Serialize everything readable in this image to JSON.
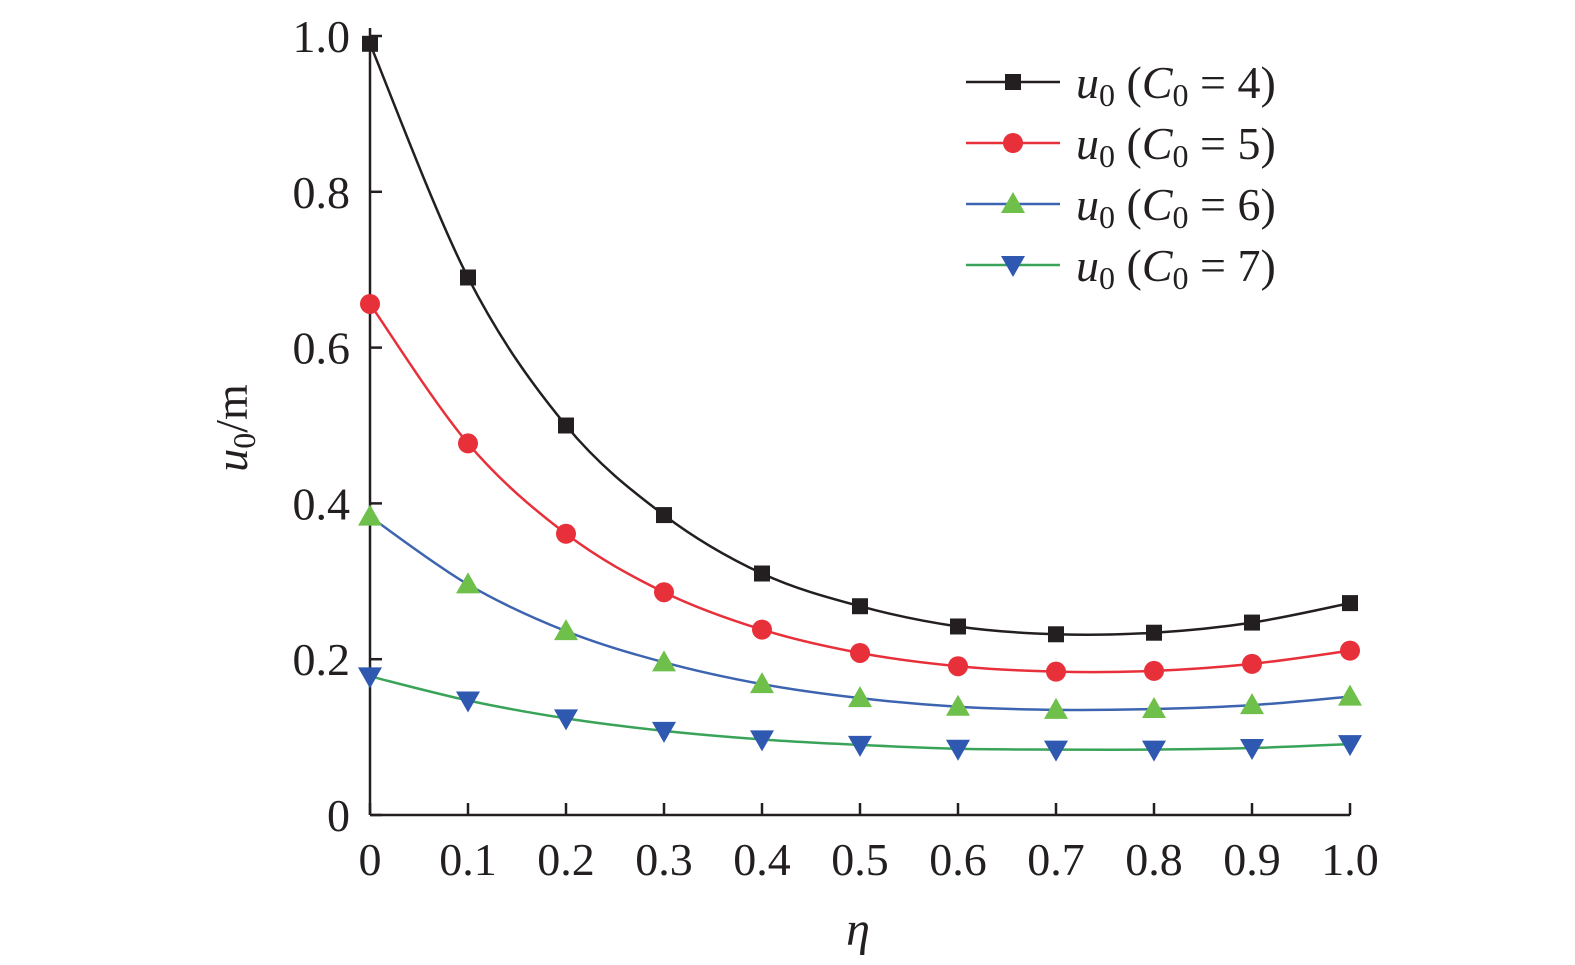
{
  "chart_data": {
    "type": "line",
    "title": "",
    "xlabel": "η",
    "ylabel": {
      "main": "u",
      "sub": "0",
      "unit": "/m"
    },
    "x": [
      0,
      0.1,
      0.2,
      0.3,
      0.4,
      0.5,
      0.6,
      0.7,
      0.8,
      0.9,
      1.0
    ],
    "xticks": [
      "0",
      "0.1",
      "0.2",
      "0.3",
      "0.4",
      "0.5",
      "0.6",
      "0.7",
      "0.8",
      "0.9",
      "1.0"
    ],
    "yticks": [
      "0",
      "0.2",
      "0.4",
      "0.6",
      "0.8",
      "1.0"
    ],
    "xlim": [
      0,
      1.0
    ],
    "ylim": [
      0,
      1.0
    ],
    "grid": false,
    "legend_position": "top-right",
    "series": [
      {
        "name": "u0 (C0 = 4)",
        "legend": {
          "var": "u",
          "sub": "0",
          "open": " (",
          "cvar": "C",
          "csub": "0",
          "rest": " = 4)"
        },
        "marker": "square",
        "line_color": "#231f20",
        "marker_color": "#231f20",
        "values": [
          0.99,
          0.69,
          0.5,
          0.385,
          0.31,
          0.268,
          0.242,
          0.232,
          0.234,
          0.247,
          0.272
        ]
      },
      {
        "name": "u0 (C0 = 5)",
        "legend": {
          "var": "u",
          "sub": "0",
          "open": " (",
          "cvar": "C",
          "csub": "0",
          "rest": " = 5)"
        },
        "marker": "circle",
        "line_color": "#e8303a",
        "marker_color": "#e8303a",
        "values": [
          0.656,
          0.477,
          0.361,
          0.286,
          0.238,
          0.208,
          0.191,
          0.184,
          0.185,
          0.194,
          0.211
        ]
      },
      {
        "name": "u0 (C0 = 6)",
        "legend": {
          "var": "u",
          "sub": "0",
          "open": " (",
          "cvar": "C",
          "csub": "0",
          "rest": " = 6)"
        },
        "marker": "triangle-up",
        "line_color": "#3d64b0",
        "marker_color": "#6fc04a",
        "values": [
          0.383,
          0.296,
          0.236,
          0.196,
          0.168,
          0.15,
          0.139,
          0.135,
          0.136,
          0.141,
          0.152
        ]
      },
      {
        "name": "u0 (C0 = 7)",
        "legend": {
          "var": "u",
          "sub": "0",
          "open": " (",
          "cvar": "C",
          "csub": "0",
          "rest": " = 7)"
        },
        "marker": "triangle-down",
        "line_color": "#3aa35a",
        "marker_color": "#2f58b0",
        "values": [
          0.178,
          0.147,
          0.124,
          0.108,
          0.097,
          0.09,
          0.085,
          0.084,
          0.084,
          0.086,
          0.091
        ]
      }
    ]
  }
}
